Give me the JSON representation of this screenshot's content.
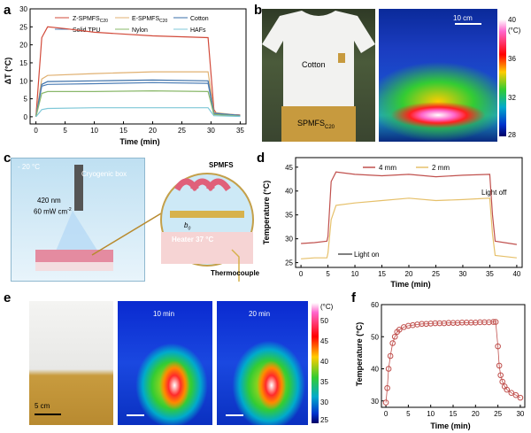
{
  "panel_labels": {
    "a": "a",
    "b": "b",
    "c": "c",
    "d": "d",
    "e": "e",
    "f": "f"
  },
  "chart_data": [
    {
      "id": "a",
      "type": "line",
      "ylabel": "ΔT (°C)",
      "xlabel": "Time (min)",
      "xlim": [
        -1,
        36
      ],
      "ylim": [
        -2,
        30
      ],
      "xticks": [
        0,
        5,
        10,
        15,
        20,
        25,
        30,
        35
      ],
      "yticks": [
        0,
        5,
        10,
        15,
        20,
        25,
        30
      ],
      "legend": [
        "Z-SPMFS",
        "E-SPMFS",
        "Cotton",
        "Solid TPU",
        "Nylon",
        "HAFs"
      ],
      "legend_sub": [
        "C20",
        "C20"
      ],
      "series": [
        {
          "name": "Z-SPMFS C20",
          "color": "#d24a3a",
          "values": [
            [
              0,
              0
            ],
            [
              1,
              22
            ],
            [
              2,
              25
            ],
            [
              5,
              24.5
            ],
            [
              10,
              23.5
            ],
            [
              20,
              22.5
            ],
            [
              29.5,
              22
            ],
            [
              30.5,
              2
            ],
            [
              31,
              0.8
            ],
            [
              35,
              0.5
            ]
          ]
        },
        {
          "name": "E-SPMFS C20",
          "color": "#e0b070",
          "values": [
            [
              0,
              0
            ],
            [
              1,
              10.5
            ],
            [
              2,
              11.5
            ],
            [
              10,
              12
            ],
            [
              20,
              12.5
            ],
            [
              29.5,
              12.5
            ],
            [
              30.5,
              1.2
            ],
            [
              35,
              0.4
            ]
          ]
        },
        {
          "name": "Cotton",
          "color": "#3a6fa8",
          "values": [
            [
              0,
              0
            ],
            [
              1,
              9
            ],
            [
              2,
              9.8
            ],
            [
              10,
              10
            ],
            [
              20,
              10.2
            ],
            [
              29.5,
              10
            ],
            [
              30.5,
              1
            ],
            [
              35,
              0.4
            ]
          ]
        },
        {
          "name": "Solid TPU",
          "color": "#4c7db5",
          "values": [
            [
              0,
              0
            ],
            [
              1,
              8.5
            ],
            [
              2,
              9
            ],
            [
              10,
              9.2
            ],
            [
              20,
              9.5
            ],
            [
              29.5,
              9.3
            ],
            [
              30.5,
              0.9
            ],
            [
              35,
              0.3
            ]
          ]
        },
        {
          "name": "Nylon",
          "color": "#8ab86a",
          "values": [
            [
              0,
              0
            ],
            [
              1,
              6.5
            ],
            [
              2,
              7
            ],
            [
              10,
              7
            ],
            [
              20,
              7.2
            ],
            [
              29.5,
              7
            ],
            [
              30.5,
              0.6
            ],
            [
              35,
              0.2
            ]
          ]
        },
        {
          "name": "HAFs",
          "color": "#7fc8d8",
          "values": [
            [
              0,
              0
            ],
            [
              1,
              2
            ],
            [
              2,
              2.3
            ],
            [
              10,
              2.5
            ],
            [
              20,
              2.5
            ],
            [
              29.5,
              2.5
            ],
            [
              30.5,
              0.3
            ],
            [
              35,
              0.1
            ]
          ]
        }
      ]
    },
    {
      "id": "d",
      "type": "line",
      "ylabel": "Temperature (°C)",
      "xlabel": "Time (min)",
      "xlim": [
        -1,
        41
      ],
      "ylim": [
        24,
        47
      ],
      "xticks": [
        0,
        5,
        10,
        15,
        20,
        25,
        30,
        35,
        40
      ],
      "yticks": [
        25,
        30,
        35,
        40,
        45
      ],
      "legend": [
        "4 mm",
        "2 mm"
      ],
      "annotations": {
        "light_on": "Light on",
        "light_off": "Light off"
      },
      "series": [
        {
          "name": "4 mm",
          "color": "#c0504d",
          "values": [
            [
              0,
              29
            ],
            [
              2.5,
              29.2
            ],
            [
              4.8,
              29.5
            ],
            [
              5,
              30.5
            ],
            [
              5.6,
              42
            ],
            [
              6.5,
              44
            ],
            [
              10,
              43.5
            ],
            [
              15,
              43.2
            ],
            [
              20,
              43.5
            ],
            [
              25,
              43
            ],
            [
              30,
              43.3
            ],
            [
              35,
              43.5
            ],
            [
              35.5,
              35
            ],
            [
              36,
              29.5
            ],
            [
              40,
              28.8
            ]
          ]
        },
        {
          "name": "2 mm",
          "color": "#e6c06a",
          "values": [
            [
              0,
              25.8
            ],
            [
              2.5,
              26
            ],
            [
              4.8,
              26
            ],
            [
              5,
              27
            ],
            [
              5.6,
              34
            ],
            [
              6.5,
              37
            ],
            [
              10,
              37.5
            ],
            [
              15,
              38
            ],
            [
              20,
              38.5
            ],
            [
              25,
              38
            ],
            [
              30,
              38.2
            ],
            [
              35,
              38.5
            ],
            [
              35.5,
              31
            ],
            [
              36,
              26.5
            ],
            [
              40,
              26
            ]
          ]
        }
      ]
    },
    {
      "id": "f",
      "type": "scatter",
      "ylabel": "Temperature (°C)",
      "xlabel": "Time (min)",
      "xlim": [
        -1,
        31
      ],
      "ylim": [
        28,
        60
      ],
      "xticks": [
        0,
        5,
        10,
        15,
        20,
        25,
        30
      ],
      "yticks": [
        30,
        40,
        50,
        60
      ],
      "series": [
        {
          "name": "Temperature",
          "color": "#c0504d",
          "values": [
            [
              0,
              29.5
            ],
            [
              0.3,
              34
            ],
            [
              0.6,
              40
            ],
            [
              1,
              44
            ],
            [
              1.5,
              48
            ],
            [
              2,
              50
            ],
            [
              2.5,
              51.5
            ],
            [
              3,
              52.2
            ],
            [
              4,
              53
            ],
            [
              5,
              53.4
            ],
            [
              6,
              53.6
            ],
            [
              7,
              53.8
            ],
            [
              8,
              54
            ],
            [
              9,
              54
            ],
            [
              10,
              54.1
            ],
            [
              11,
              54.2
            ],
            [
              12,
              54.2
            ],
            [
              13,
              54.2
            ],
            [
              14,
              54.3
            ],
            [
              15,
              54.3
            ],
            [
              16,
              54.3
            ],
            [
              17,
              54.4
            ],
            [
              18,
              54.4
            ],
            [
              19,
              54.4
            ],
            [
              20,
              54.4
            ],
            [
              21,
              54.5
            ],
            [
              22,
              54.5
            ],
            [
              23,
              54.5
            ],
            [
              24,
              54.6
            ],
            [
              24.5,
              54.6
            ],
            [
              25,
              47
            ],
            [
              25.3,
              41
            ],
            [
              25.6,
              38
            ],
            [
              26,
              36
            ],
            [
              26.5,
              34.5
            ],
            [
              27,
              33.5
            ],
            [
              28,
              32.5
            ],
            [
              29,
              31.8
            ],
            [
              30,
              31
            ]
          ]
        }
      ]
    }
  ],
  "panel_b": {
    "cotton_label": "Cotton",
    "spmfs_label": "SPMFS",
    "spmfs_sub": "C20",
    "scale": "10 cm",
    "colorbar_unit": "(°C)",
    "colorbar_ticks": [
      "40",
      "36",
      "32",
      "28"
    ]
  },
  "panel_c": {
    "temp_box": "- 20 °C",
    "cryo_box": "Cryogenic box",
    "wavelength": "420 nm",
    "power": "60 mW cm",
    "power_sup": "-2",
    "spmfs": "SPMFS",
    "b0": "b",
    "b0_sub": "0",
    "heater": "Heater 37 °C",
    "thermocouple": "Thermocouple"
  },
  "panel_e": {
    "scale": "5 cm",
    "t10": "10 min",
    "t20": "20 min",
    "colorbar_unit": "(°C)",
    "colorbar_ticks": [
      "50",
      "45",
      "40",
      "35",
      "30",
      "25"
    ]
  }
}
